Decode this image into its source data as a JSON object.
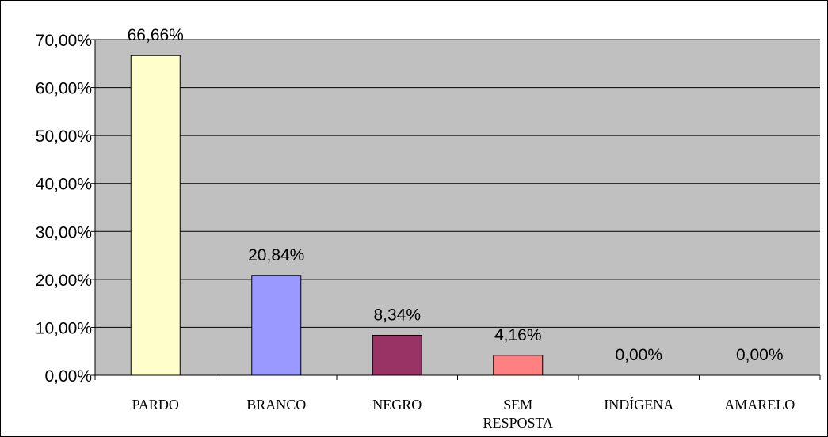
{
  "chart_data": {
    "type": "bar",
    "categories": [
      "PARDO",
      "BRANCO",
      "NEGRO",
      "SEM RESPOSTA",
      "INDÍGENA",
      "AMARELO"
    ],
    "category_lines": [
      [
        "PARDO"
      ],
      [
        "BRANCO"
      ],
      [
        "NEGRO"
      ],
      [
        "SEM",
        "RESPOSTA"
      ],
      [
        "INDÍGENA"
      ],
      [
        "AMARELO"
      ]
    ],
    "values": [
      66.66,
      20.84,
      8.34,
      4.16,
      0,
      0
    ],
    "data_labels": [
      "66,66%",
      "20,84%",
      "8,34%",
      "4,16%",
      "0,00%",
      "0,00%"
    ],
    "bar_colors": [
      "#ffffcc",
      "#9999ff",
      "#993366",
      "#ff8080",
      "#cccccc",
      "#cccccc"
    ],
    "ylim": [
      0,
      70
    ],
    "yticks": [
      0,
      10,
      20,
      30,
      40,
      50,
      60,
      70
    ],
    "ytick_labels": [
      "0,00%",
      "10,00%",
      "20,00%",
      "30,00%",
      "40,00%",
      "50,00%",
      "60,00%",
      "70,00%"
    ],
    "title": "",
    "xlabel": "",
    "ylabel": "",
    "grid": true,
    "legend": "none",
    "plot_background": "#c0c0c0"
  }
}
